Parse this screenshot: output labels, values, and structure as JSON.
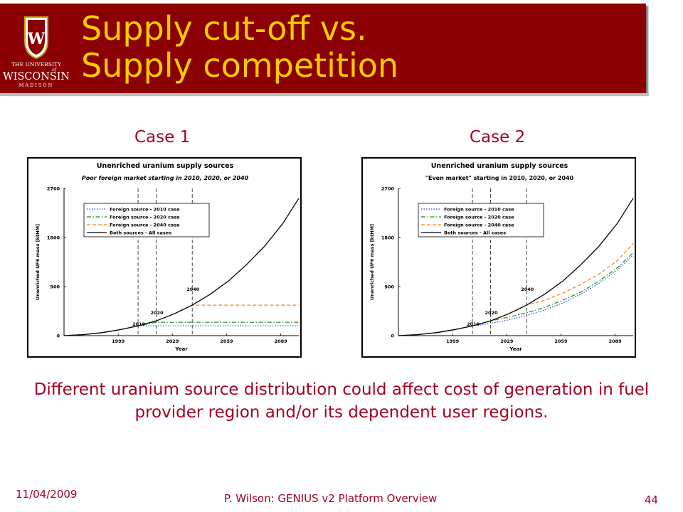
{
  "slide": {
    "title_line1": "Supply cut-off vs.",
    "title_line2": "Supply competition",
    "case1_label": "Case 1",
    "case2_label": "Case 2",
    "caption": "Different uranium source distribution could affect cost of generation in fuel provider region and/or its dependent user regions.",
    "footer_date": "11/04/2009",
    "footer_center": "P. Wilson: GENIUS v2 Platform Overview",
    "page_number": "44",
    "logo_text_top": "THE UNIVERSITY",
    "logo_text_of": "of",
    "logo_text_main": "WISCONSIN",
    "logo_text_bottom": "MADISON",
    "logo_crest_letter": "W"
  },
  "colors": {
    "banner": "#8b0000",
    "title": "#ffcc00",
    "text_accent": "#a50021"
  },
  "chart_data": [
    {
      "type": "line",
      "title": "Unenriched uranium supply sources",
      "subtitle": "Poor foreign market starting in 2010, 2020, or 2040",
      "xlabel": "Year",
      "ylabel": "Unenriched UF6 mass [ktHM]",
      "xlim": [
        1969,
        2099
      ],
      "ylim": [
        0,
        2700
      ],
      "xticks": [
        1999,
        2029,
        2059,
        2089
      ],
      "yticks": [
        0,
        900,
        1800,
        2700
      ],
      "annotations": [
        {
          "text": "2010",
          "x": 2010,
          "y": 310
        },
        {
          "text": "2020",
          "x": 2020,
          "y": 520
        },
        {
          "text": "2040",
          "x": 2040,
          "y": 950
        }
      ],
      "vlines": [
        2010,
        2020,
        2040
      ],
      "legend_position": "top-left",
      "series": [
        {
          "name": "Foreign source - 2010 case",
          "color": "#1f4fbf",
          "style": "dotted",
          "x": [
            1969,
            1980,
            1990,
            2000,
            2010,
            2020,
            2099
          ],
          "y": [
            0,
            20,
            55,
            110,
            180,
            180,
            180
          ]
        },
        {
          "name": "Foreign source - 2020 case",
          "color": "#129112",
          "style": "dashdot",
          "x": [
            1969,
            1980,
            1990,
            2000,
            2010,
            2020,
            2099
          ],
          "y": [
            0,
            20,
            55,
            110,
            180,
            245,
            245
          ]
        },
        {
          "name": "Foreign source - 2040 case",
          "color": "#ff7f0e",
          "style": "dashed",
          "x": [
            1969,
            1980,
            1990,
            2000,
            2010,
            2020,
            2030,
            2040,
            2099
          ],
          "y": [
            0,
            20,
            55,
            110,
            180,
            270,
            400,
            560,
            560
          ]
        },
        {
          "name": "Both sources - All cases",
          "color": "#000000",
          "style": "solid",
          "x": [
            1969,
            1980,
            1990,
            2000,
            2010,
            2020,
            2030,
            2040,
            2050,
            2060,
            2070,
            2080,
            2090,
            2099
          ],
          "y": [
            0,
            20,
            55,
            110,
            180,
            270,
            400,
            560,
            760,
            1000,
            1300,
            1640,
            2050,
            2520
          ]
        }
      ]
    },
    {
      "type": "line",
      "title": "Unenriched uranium supply sources",
      "subtitle": "\"Even market\" starting in 2010, 2020, or 2040",
      "xlabel": "Year",
      "ylabel": "Unenriched UF6 mass [ktHM]",
      "xlim": [
        1969,
        2099
      ],
      "ylim": [
        0,
        2700
      ],
      "xticks": [
        1999,
        2029,
        2059,
        2089
      ],
      "yticks": [
        0,
        900,
        1800,
        2700
      ],
      "annotations": [
        {
          "text": "2010",
          "x": 2010,
          "y": 310
        },
        {
          "text": "2020",
          "x": 2020,
          "y": 520
        },
        {
          "text": "2040",
          "x": 2040,
          "y": 950
        }
      ],
      "vlines": [
        2010,
        2020,
        2040
      ],
      "legend_position": "top-left",
      "series": [
        {
          "name": "Foreign source - 2010 case",
          "color": "#1f4fbf",
          "style": "dotted",
          "x": [
            1969,
            1980,
            1990,
            2000,
            2010,
            2020,
            2030,
            2040,
            2050,
            2060,
            2070,
            2080,
            2090,
            2099
          ],
          "y": [
            0,
            20,
            55,
            110,
            180,
            225,
            290,
            370,
            470,
            600,
            760,
            960,
            1200,
            1480
          ]
        },
        {
          "name": "Foreign source - 2020 case",
          "color": "#129112",
          "style": "dashdot",
          "x": [
            1969,
            1980,
            1990,
            2000,
            2010,
            2020,
            2030,
            2040,
            2050,
            2060,
            2070,
            2080,
            2090,
            2099
          ],
          "y": [
            0,
            20,
            55,
            110,
            180,
            270,
            340,
            420,
            520,
            650,
            800,
            1000,
            1240,
            1520
          ]
        },
        {
          "name": "Foreign source - 2040 case",
          "color": "#ff7f0e",
          "style": "dashed",
          "x": [
            1969,
            1980,
            1990,
            2000,
            2010,
            2020,
            2030,
            2040,
            2050,
            2060,
            2070,
            2080,
            2090,
            2099
          ],
          "y": [
            0,
            20,
            55,
            110,
            180,
            270,
            400,
            560,
            650,
            780,
            940,
            1130,
            1370,
            1690
          ]
        },
        {
          "name": "Both sources - All cases",
          "color": "#000000",
          "style": "solid",
          "x": [
            1969,
            1980,
            1990,
            2000,
            2010,
            2020,
            2030,
            2040,
            2050,
            2060,
            2070,
            2080,
            2090,
            2099
          ],
          "y": [
            0,
            20,
            55,
            110,
            180,
            270,
            400,
            560,
            760,
            1000,
            1300,
            1640,
            2050,
            2520
          ]
        }
      ]
    }
  ]
}
